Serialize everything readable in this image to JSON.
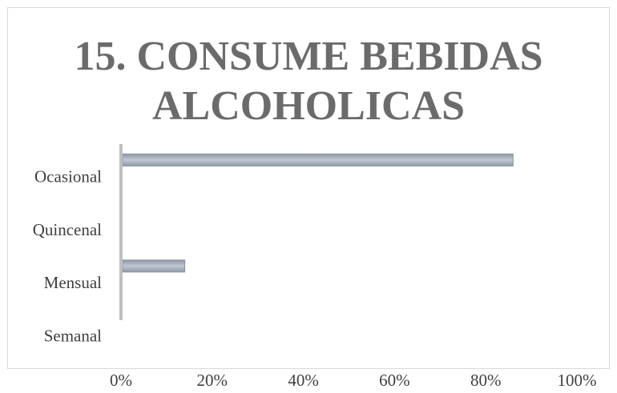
{
  "chart_data": {
    "type": "bar",
    "orientation": "horizontal",
    "title": "15. CONSUME BEBIDAS ALCOHOLICAS",
    "categories": [
      "Semanal",
      "Mensual",
      "Quincenal",
      "Ocasional"
    ],
    "values": [
      0,
      14,
      0,
      86
    ],
    "unit": "%",
    "xlim": [
      0,
      100
    ],
    "xticks": [
      "0%",
      "20%",
      "40%",
      "60%",
      "80%",
      "100%"
    ],
    "xlabel": "",
    "ylabel": "",
    "grid": false,
    "legend": "none",
    "colors": {
      "bar": "#a6adbb",
      "bar_edge": "#8a93a4",
      "axis": "#bfbfbf",
      "title": "#6b6b6b",
      "text": "#3f3f3f"
    }
  }
}
